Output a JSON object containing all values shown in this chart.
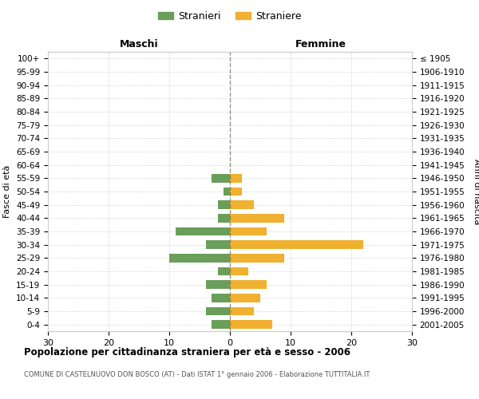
{
  "age_groups": [
    "0-4",
    "5-9",
    "10-14",
    "15-19",
    "20-24",
    "25-29",
    "30-34",
    "35-39",
    "40-44",
    "45-49",
    "50-54",
    "55-59",
    "60-64",
    "65-69",
    "70-74",
    "75-79",
    "80-84",
    "85-89",
    "90-94",
    "95-99",
    "100+"
  ],
  "birth_years": [
    "2001-2005",
    "1996-2000",
    "1991-1995",
    "1986-1990",
    "1981-1985",
    "1976-1980",
    "1971-1975",
    "1966-1970",
    "1961-1965",
    "1956-1960",
    "1951-1955",
    "1946-1950",
    "1941-1945",
    "1936-1940",
    "1931-1935",
    "1926-1930",
    "1921-1925",
    "1916-1920",
    "1911-1915",
    "1906-1910",
    "≤ 1905"
  ],
  "maschi": [
    3,
    4,
    3,
    4,
    2,
    10,
    4,
    9,
    2,
    2,
    1,
    3,
    0,
    0,
    0,
    0,
    0,
    0,
    0,
    0,
    0
  ],
  "femmine": [
    7,
    4,
    5,
    6,
    3,
    9,
    22,
    6,
    9,
    4,
    2,
    2,
    0,
    0,
    0,
    0,
    0,
    0,
    0,
    0,
    0
  ],
  "maschi_color": "#6a9e5a",
  "femmine_color": "#f0b030",
  "xlim": 30,
  "title": "Popolazione per cittadinanza straniera per età e sesso - 2006",
  "subtitle": "COMUNE DI CASTELNUOVO DON BOSCO (AT) - Dati ISTAT 1° gennaio 2006 - Elaborazione TUTTITALIA.IT",
  "ylabel_left": "Fasce di età",
  "ylabel_right": "Anni di nascita",
  "xlabel_maschi": "Maschi",
  "xlabel_femmine": "Femmine",
  "legend_maschi": "Stranieri",
  "legend_femmine": "Straniere",
  "bg_color": "#ffffff",
  "grid_color": "#cccccc",
  "centerline_color": "#707050"
}
